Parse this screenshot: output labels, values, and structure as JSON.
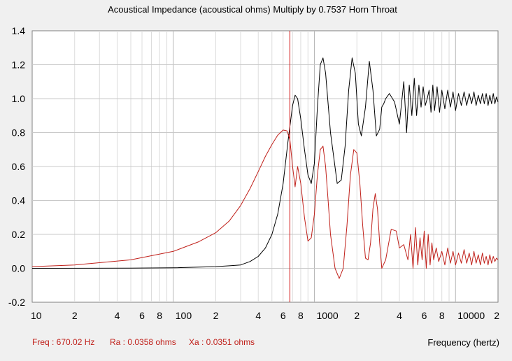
{
  "chart_data": {
    "type": "line",
    "title": "Acoustical Impedance (acoustical ohms)   Multiply by 0.7537   Horn Throat",
    "xlabel": "Frequency (hertz)",
    "ylabel": "",
    "x_scale": "log",
    "xlim": [
      10,
      20000
    ],
    "ylim": [
      -0.2,
      1.4
    ],
    "y_ticks": [
      -0.2,
      0.0,
      0.2,
      0.4,
      0.6,
      0.8,
      1.0,
      1.2,
      1.4
    ],
    "y_tick_labels": [
      "-0.2",
      "0.0",
      "0.2",
      "0.4",
      "0.6",
      "0.8",
      "1.0",
      "1.2",
      "1.4"
    ],
    "x_ticks": [
      10,
      20,
      40,
      60,
      80,
      100,
      200,
      400,
      600,
      800,
      1000,
      2000,
      4000,
      6000,
      8000,
      10000,
      20000
    ],
    "x_tick_labels": [
      "10",
      "2",
      "4",
      "6",
      "8",
      "100",
      "2",
      "4",
      "6",
      "8",
      "1000",
      "2",
      "4",
      "6",
      "8",
      "10000",
      "2"
    ],
    "grid": true,
    "cursor_x": 670.02,
    "colors": {
      "black_series": "#000000",
      "red_series": "#c0201a",
      "cursor": "#d01010",
      "plot_bg": "#ffffff",
      "grid": "#c8c8c8"
    },
    "series": [
      {
        "color": "#000000",
        "x": [
          10,
          50,
          100,
          200,
          250,
          300,
          350,
          400,
          450,
          500,
          550,
          600,
          650,
          700,
          730,
          760,
          800,
          850,
          900,
          950,
          1000,
          1050,
          1100,
          1150,
          1200,
          1300,
          1450,
          1550,
          1650,
          1750,
          1850,
          1950,
          2050,
          2150,
          2300,
          2450,
          2600,
          2750,
          2900,
          3000,
          3100,
          3200,
          3400,
          3700,
          4000,
          4300,
          4500,
          4700,
          4900,
          5100,
          5300,
          5500,
          5700,
          5900,
          6100,
          6300,
          6500,
          6700,
          6900,
          7100,
          7400,
          7700,
          8000,
          8400,
          8800,
          9200,
          9600,
          10000,
          10500,
          11000,
          11500,
          12000,
          12500,
          13000,
          13500,
          14000,
          14500,
          15000,
          15500,
          16000,
          16500,
          17000,
          17500,
          18000,
          18500,
          19000,
          19500,
          20000
        ],
        "values": [
          0.0,
          0.001,
          0.003,
          0.01,
          0.015,
          0.02,
          0.04,
          0.07,
          0.12,
          0.2,
          0.32,
          0.5,
          0.75,
          0.96,
          1.02,
          1.0,
          0.88,
          0.7,
          0.55,
          0.5,
          0.62,
          0.95,
          1.2,
          1.24,
          1.15,
          0.8,
          0.5,
          0.52,
          0.72,
          1.05,
          1.24,
          1.15,
          0.85,
          0.78,
          0.95,
          1.22,
          1.05,
          0.78,
          0.82,
          0.95,
          0.97,
          1.0,
          1.03,
          0.98,
          0.85,
          1.1,
          0.8,
          1.08,
          0.9,
          1.12,
          0.9,
          1.08,
          0.95,
          1.07,
          0.96,
          1.0,
          1.05,
          0.92,
          1.08,
          0.93,
          1.07,
          0.92,
          1.05,
          0.94,
          1.05,
          0.95,
          1.04,
          0.93,
          1.03,
          0.96,
          1.04,
          0.96,
          1.03,
          0.97,
          1.04,
          0.96,
          1.02,
          0.97,
          1.03,
          0.97,
          1.03,
          0.96,
          1.02,
          0.97,
          1.03,
          0.97,
          1.01,
          0.98
        ]
      },
      {
        "color": "#c0201a",
        "x": [
          10,
          20,
          50,
          100,
          150,
          200,
          250,
          300,
          350,
          400,
          450,
          500,
          550,
          600,
          640,
          670,
          700,
          730,
          760,
          800,
          850,
          900,
          950,
          1000,
          1050,
          1100,
          1150,
          1200,
          1250,
          1300,
          1400,
          1500,
          1600,
          1700,
          1800,
          1900,
          2000,
          2100,
          2200,
          2300,
          2400,
          2500,
          2600,
          2700,
          2800,
          2900,
          3000,
          3200,
          3500,
          3800,
          4000,
          4300,
          4600,
          4800,
          5000,
          5200,
          5400,
          5600,
          5800,
          6000,
          6200,
          6400,
          6600,
          6800,
          7000,
          7300,
          7600,
          8000,
          8400,
          8800,
          9200,
          9600,
          10000,
          10500,
          11000,
          11500,
          12000,
          12500,
          13000,
          13500,
          14000,
          14500,
          15000,
          15500,
          16000,
          16500,
          17000,
          17500,
          18000,
          18500,
          19000,
          19500,
          20000
        ],
        "values": [
          0.01,
          0.02,
          0.05,
          0.1,
          0.155,
          0.21,
          0.28,
          0.37,
          0.47,
          0.57,
          0.66,
          0.73,
          0.785,
          0.815,
          0.81,
          0.76,
          0.6,
          0.48,
          0.6,
          0.5,
          0.3,
          0.16,
          0.18,
          0.32,
          0.55,
          0.7,
          0.72,
          0.6,
          0.4,
          0.2,
          0.0,
          -0.06,
          0.0,
          0.25,
          0.55,
          0.7,
          0.68,
          0.5,
          0.25,
          0.06,
          0.05,
          0.15,
          0.35,
          0.44,
          0.35,
          0.15,
          0.0,
          0.05,
          0.23,
          0.22,
          0.12,
          0.14,
          0.05,
          0.2,
          0.0,
          0.24,
          0.02,
          0.18,
          0.05,
          0.22,
          0.0,
          0.2,
          0.02,
          0.15,
          0.05,
          0.12,
          0.04,
          0.1,
          0.02,
          0.12,
          0.03,
          0.1,
          0.02,
          0.09,
          0.03,
          0.11,
          0.03,
          0.09,
          0.02,
          0.1,
          0.03,
          0.08,
          0.02,
          0.09,
          0.03,
          0.07,
          0.02,
          0.08,
          0.03,
          0.07,
          0.04,
          0.06,
          0.05
        ]
      }
    ]
  },
  "status": {
    "freq": "Freq : 670.02 Hz",
    "ra": "Ra : 0.0358 ohms",
    "xa": "Xa : 0.0351 ohms"
  }
}
